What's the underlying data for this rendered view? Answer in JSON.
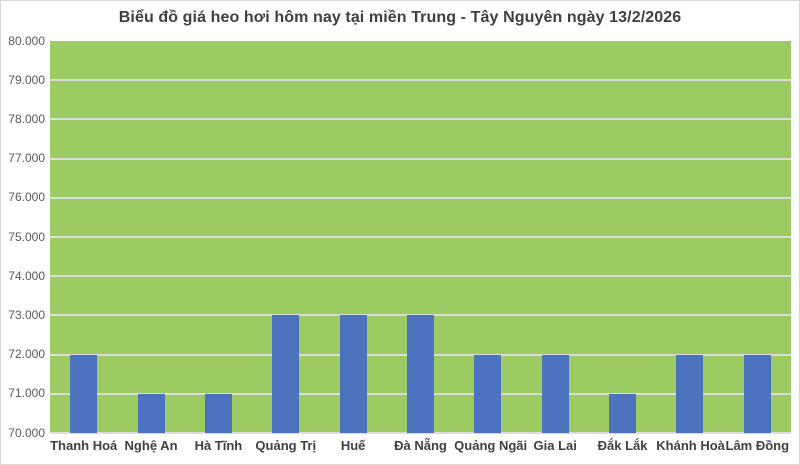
{
  "title": "Biểu đồ giá heo hơi hôm nay tại miền Trung - Tây Nguyên ngày 13/2/2026",
  "chart_data": {
    "type": "bar",
    "categories": [
      "Thanh Hoá",
      "Nghệ An",
      "Hà Tĩnh",
      "Quảng Trị",
      "Huế",
      "Đà Nẵng",
      "Quảng Ngãi",
      "Gia Lai",
      "Đắk Lắk",
      "Khánh Hoà",
      "Lâm Đồng"
    ],
    "values": [
      72000,
      71000,
      71000,
      73000,
      73000,
      73000,
      72000,
      72000,
      71000,
      72000,
      72000
    ],
    "title": "Biểu đồ giá heo hơi hôm nay tại miền Trung - Tây Nguyên ngày 13/2/2026",
    "xlabel": "",
    "ylabel": "",
    "ylim": [
      70000,
      80000
    ],
    "ytick_step": 1000,
    "ytick_labels": [
      "80.000",
      "79.000",
      "78.000",
      "77.000",
      "76.000",
      "75.000",
      "74.000",
      "73.000",
      "72.000",
      "71.000",
      "70.000"
    ],
    "grid": true,
    "legend": false,
    "colors": {
      "bar": "#4C72BE",
      "plot_background": "#9CCB63",
      "gridline": "#DCDCDC",
      "title_text": "#404040",
      "axis_text": "#595959",
      "category_text": "#404040",
      "canvas_background": "#FFFFFF",
      "border": "#D9D9D9"
    }
  }
}
